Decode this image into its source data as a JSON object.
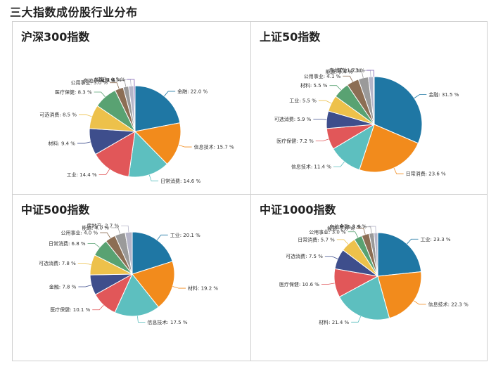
{
  "page_title": "三大指数成份股行业分布",
  "chart_data": [
    {
      "type": "pie",
      "title": "沪深300指数",
      "categories": [
        "金融",
        "信息技术",
        "日常消费",
        "工业",
        "材料",
        "可选消费",
        "医疗保健",
        "公用事业",
        "房地产",
        "能源",
        "其他"
      ],
      "values": [
        22.0,
        15.7,
        14.6,
        14.4,
        9.4,
        8.5,
        8.3,
        3.0,
        1.9,
        1.8,
        0.5
      ],
      "labels": [
        "金融: 22.0 %",
        "信息技术: 15.7 %",
        "日常消费: 14.6 %",
        "工业: 14.4 %",
        "材料: 9.4 %",
        "可选消费: 8.5 %",
        "医疗保健: 8.3 %",
        "公用事业: 3.0 %",
        "房地产: 1.9 %",
        "能源: 1.8 %",
        "其他: 0.5 %"
      ]
    },
    {
      "type": "pie",
      "title": "上证50指数",
      "categories": [
        "金融",
        "日常消费",
        "信息技术",
        "医疗保健",
        "可选消费",
        "工业",
        "材料",
        "公用事业",
        "能源",
        "房地产",
        "其他"
      ],
      "values": [
        31.5,
        23.6,
        11.4,
        7.2,
        5.9,
        5.5,
        5.5,
        4.1,
        3.4,
        1.7,
        0.3
      ],
      "labels": [
        "金融: 31.5 %",
        "日常消费: 23.6 %",
        "信息技术: 11.4 %",
        "医疗保健: 7.2 %",
        "可选消费: 5.9 %",
        "工业: 5.5 %",
        "材料: 5.5 %",
        "公用事业: 4.1 %",
        "能源: 3.4 %",
        "房地产: 1.7 %",
        "其他: 0.3 %"
      ]
    },
    {
      "type": "pie",
      "title": "中证500指数",
      "categories": [
        "工业",
        "材料",
        "信息技术",
        "医疗保健",
        "金融",
        "可选消费",
        "日常消费",
        "公用事业",
        "能源",
        "房地产"
      ],
      "values": [
        20.1,
        19.2,
        17.5,
        10.1,
        7.8,
        7.8,
        6.8,
        4.0,
        4.0,
        2.7
      ],
      "labels": [
        "工业: 20.1 %",
        "材料: 19.2 %",
        "信息技术: 17.5 %",
        "医疗保健: 10.1 %",
        "金融: 7.8 %",
        "可选消费: 7.8 %",
        "日常消费: 6.8 %",
        "公用事业: 4.0 %",
        "能源: 4.0 %",
        "房地产: 2.7 %"
      ]
    },
    {
      "type": "pie",
      "title": "中证1000指数",
      "categories": [
        "工业",
        "信息技术",
        "材料",
        "医疗保健",
        "可选消费",
        "日常消费",
        "公用事业",
        "能源",
        "房地产",
        "金融"
      ],
      "values": [
        23.3,
        22.3,
        21.4,
        10.6,
        7.5,
        5.7,
        3.0,
        2.8,
        1.8,
        1.4
      ],
      "labels": [
        "工业: 23.3 %",
        "信息技术: 22.3 %",
        "材料: 21.4 %",
        "医疗保健: 10.6 %",
        "可选消费: 7.5 %",
        "日常消费: 5.7 %",
        "公用事业: 3.0 %",
        "能源: 2.8 %",
        "房地产: 1.8 %",
        "金融: 1.4 %"
      ]
    }
  ],
  "colors": [
    "#1f77a4",
    "#f28b1c",
    "#5dbfbf",
    "#e15759",
    "#3e4e8c",
    "#edc14b",
    "#59a272",
    "#8c6e54",
    "#9a9a9a",
    "#b5b5c8",
    "#7b5bb0"
  ]
}
